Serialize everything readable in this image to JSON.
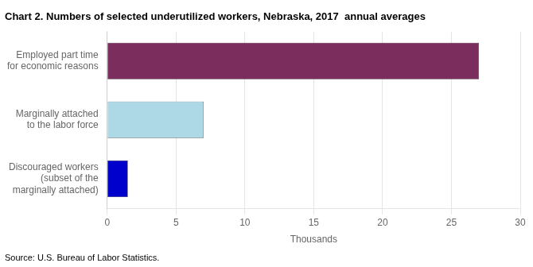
{
  "chart_data": {
    "type": "bar",
    "orientation": "horizontal",
    "title": "Chart 2. Numbers of selected underutilized workers, Nebraska, 2017  annual averages",
    "categories": [
      "Discouraged workers\n(subset of the\nmarginally attached)",
      "Marginally attached\nto the labor force",
      "Employed part time\nfor economic reasons"
    ],
    "values": [
      1.5,
      7.0,
      27.0
    ],
    "colors": [
      "#0000cc",
      "#add8e6",
      "#7b2d5e"
    ],
    "xlabel": "Thousands",
    "xlim": [
      0,
      30
    ],
    "xticks": [
      0,
      5,
      10,
      15,
      20,
      25,
      30
    ],
    "grid": "x",
    "source": "Source: U.S. Bureau of Labor Statistics."
  }
}
